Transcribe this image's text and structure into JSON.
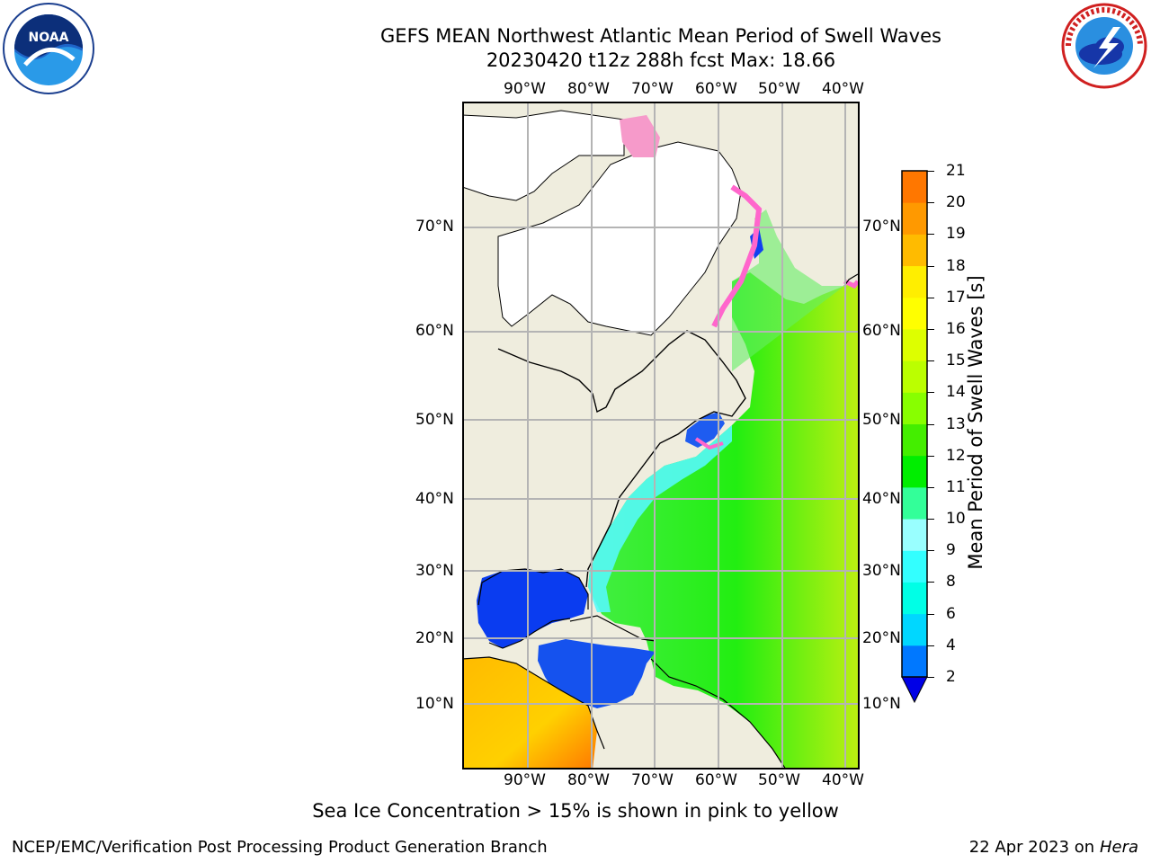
{
  "header": {
    "title_line1": "GEFS MEAN Northwest Atlantic Mean Period of Swell Waves",
    "title_line2": "20230420 t12z 288h fcst   Max: 18.66"
  },
  "logos": {
    "left": {
      "name": "NOAA",
      "ring_text": "NATIONAL OCEANIC AND ATMOSPHERIC ADMINISTRATION · U.S. DEPARTMENT OF COMMERCE"
    },
    "right": {
      "ring_text": "NATIONAL WEATHER SERVICE"
    }
  },
  "map": {
    "lon_labels": [
      "90°W",
      "80°W",
      "70°W",
      "60°W",
      "50°W",
      "40°W"
    ],
    "lat_labels": [
      "70°N",
      "60°N",
      "50°N",
      "40°N",
      "30°N",
      "20°N",
      "10°N"
    ],
    "colors": {
      "land": "#efedde",
      "ice_free": "#ffffff",
      "ocean_main": "#33e633",
      "ocean_east": "#aaee11",
      "gulf": "#0a3cf0",
      "shelf": "#44f7f7",
      "tropics_land": "#ff9d00"
    }
  },
  "colorbar": {
    "label": "Mean Period of Swell Waves [s]",
    "ticks": [
      "21",
      "20",
      "19",
      "18",
      "17",
      "16",
      "15",
      "14",
      "13",
      "12",
      "11",
      "10",
      "9",
      "8",
      "6",
      "4",
      "2"
    ],
    "colors": [
      "#0000e6",
      "#0078ff",
      "#00d7ff",
      "#00ffe6",
      "#33ffff",
      "#99ffff",
      "#33ff99",
      "#00ee00",
      "#44ee00",
      "#88ff00",
      "#bbff00",
      "#ddff00",
      "#ffff00",
      "#ffee00",
      "#ffbb00",
      "#ff9900",
      "#ff7700",
      "#ff5500",
      "#ff3300",
      "#ff0000"
    ]
  },
  "notes": {
    "ice": "Sea Ice Concentration > 15% is shown in pink to yellow"
  },
  "footer": {
    "left": "NCEP/EMC/Verification Post Processing Product Generation Branch",
    "right_prefix": "22 Apr 2023 on ",
    "right_machine": "Hera"
  }
}
